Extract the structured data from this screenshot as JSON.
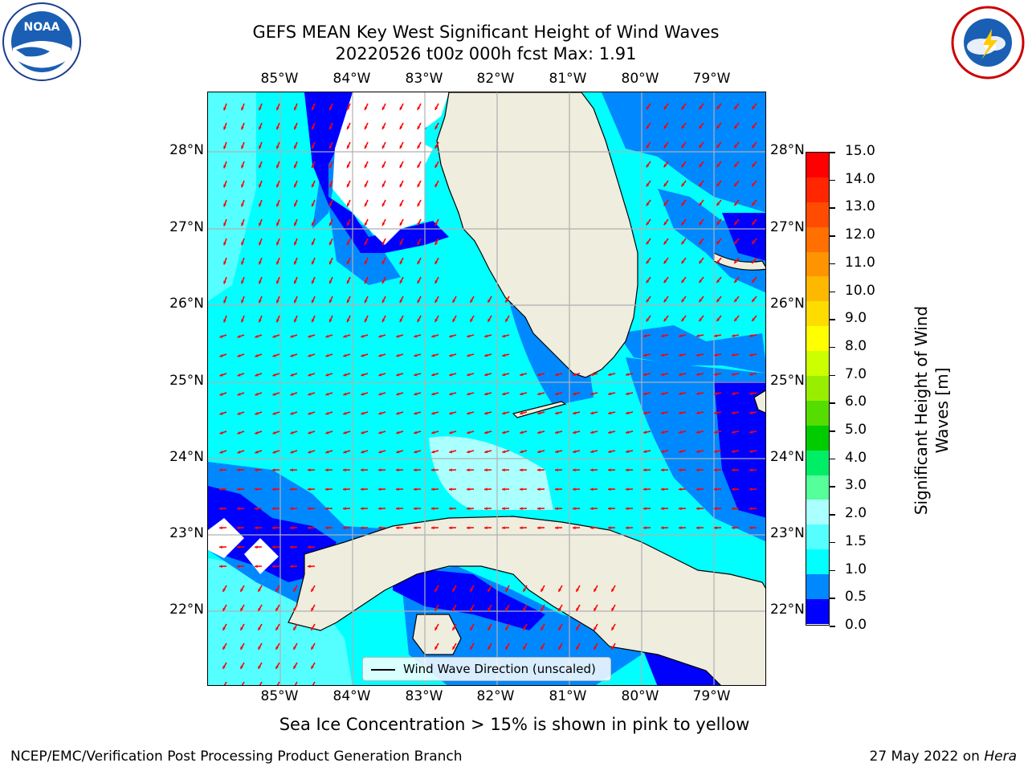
{
  "title_line1": "GEFS MEAN Key West Significant Height of Wind Waves",
  "title_line2": "20220526 t00z 000h fcst   Max: 1.91",
  "lon_labels": [
    "85°W",
    "84°W",
    "83°W",
    "82°W",
    "81°W",
    "80°W",
    "79°W"
  ],
  "lat_labels": [
    "28°N",
    "27°N",
    "26°N",
    "25°N",
    "24°N",
    "23°N",
    "22°N"
  ],
  "colorbar": {
    "title": "Significant Height of Wind Waves [m]",
    "ticks": [
      "15.0",
      "14.0",
      "13.0",
      "12.0",
      "11.0",
      "10.0",
      "9.0",
      "8.0",
      "7.0",
      "6.0",
      "5.0",
      "4.0",
      "3.0",
      "2.0",
      "1.5",
      "1.0",
      "0.5",
      "0.0"
    ],
    "colors": [
      "#ff0000",
      "#ff2600",
      "#ff4c00",
      "#ff7000",
      "#ff9400",
      "#ffb800",
      "#ffdc00",
      "#ffff00",
      "#ccff00",
      "#99ee00",
      "#55dd00",
      "#00cc00",
      "#00ee66",
      "#55ff99",
      "#aaffff",
      "#55ffff",
      "#00ffff",
      "#0088ff",
      "#0000ff"
    ]
  },
  "legend_label": "Wind Wave Direction (unscaled)",
  "subtitle": "Sea Ice Concentration > 15% is shown in pink to yellow",
  "footer_left": "NCEP/EMC/Verification Post Processing Product Generation Branch",
  "footer_date": "27 May 2022 on ",
  "footer_machine": "Hera",
  "logos": {
    "left": "NOAA",
    "right": "NATIONAL WEATHER SERVICE"
  },
  "colors": {
    "land": "#eeedde",
    "arrow": "#ff0000",
    "grid": "#b0b0b0"
  }
}
